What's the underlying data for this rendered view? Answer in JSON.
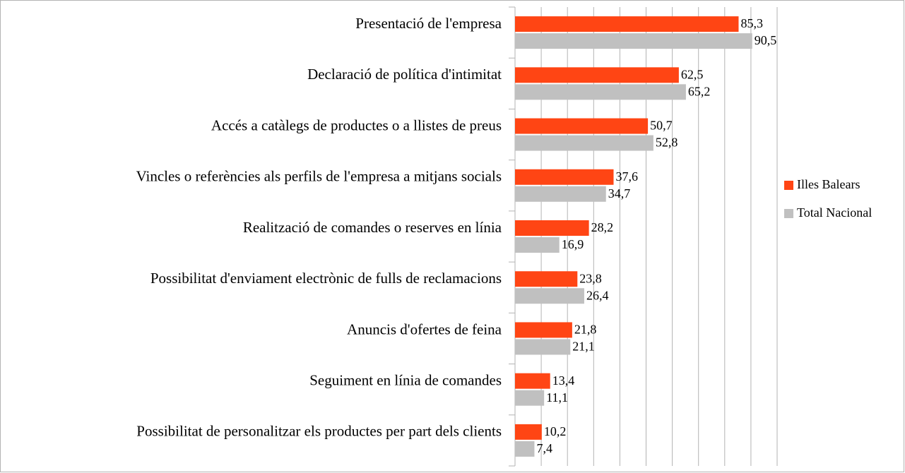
{
  "chart_data": {
    "type": "hbar",
    "categories": [
      "Presentació de l'empresa",
      "Declaració de política d'intimitat",
      "Accés a catàlegs de productes o a llistes de preus",
      "Vincles o referències als perfils de l'empresa a mitjans socials",
      "Realització de comandes o reserves en línia",
      "Possibilitat d'enviament electrònic de fulls de reclamacions",
      "Anuncis d'ofertes de feina",
      "Seguiment en línia de comandes",
      "Possibilitat de personalitzar els productes per part dels clients"
    ],
    "series": [
      {
        "name": "Illes Balears",
        "color": "#ff4514",
        "values": [
          85.3,
          62.5,
          50.7,
          37.6,
          28.2,
          23.8,
          21.8,
          13.4,
          10.2
        ],
        "value_labels": [
          "85,3",
          "62,5",
          "50,7",
          "37,6",
          "28,2",
          "23,8",
          "21,8",
          "13,4",
          "10,2"
        ]
      },
      {
        "name": "Total Nacional",
        "color": "#c0c0c0",
        "values": [
          90.5,
          65.2,
          52.8,
          34.7,
          16.9,
          26.4,
          21.1,
          11.1,
          7.4
        ],
        "value_labels": [
          "90,5",
          "65,2",
          "52,8",
          "34,7",
          "16,9",
          "26,4",
          "21,1",
          "11,1",
          "7,4"
        ]
      }
    ],
    "xlim": [
      0,
      100
    ],
    "xticks": [
      0,
      10,
      20,
      30,
      40,
      50,
      60,
      70,
      80,
      90,
      100
    ],
    "grid": true,
    "legend": "right"
  }
}
